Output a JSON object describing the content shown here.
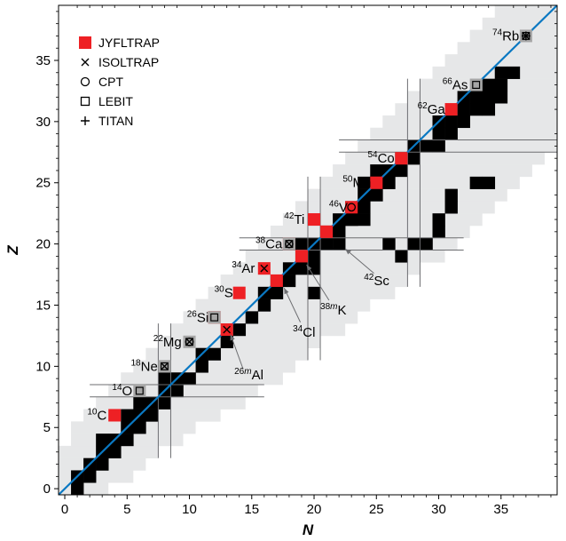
{
  "chart_data": {
    "type": "scatter",
    "title": "",
    "xlabel": "N",
    "ylabel": "Z",
    "xlim": [
      -0.5,
      39.5
    ],
    "ylim": [
      -0.5,
      39.5
    ],
    "x_ticks": [
      0,
      5,
      10,
      15,
      20,
      25,
      30,
      35
    ],
    "y_ticks": [
      0,
      5,
      10,
      15,
      20,
      25,
      30,
      35
    ],
    "colors": {
      "jyfltrap": "#ee2024",
      "lebit": "#a6a6a6",
      "stable": "#000000",
      "known": "#e6e7e8",
      "nz_line": "#0a78c2",
      "guide": "#6d6e71"
    },
    "legend": {
      "placement": "top-left",
      "entries": [
        {
          "label": "JYFLTRAP",
          "marker": "filled-square"
        },
        {
          "label": "ISOLTRAP",
          "marker": "cross"
        },
        {
          "label": "CPT",
          "marker": "circle"
        },
        {
          "label": "LEBIT",
          "marker": "open-square"
        },
        {
          "label": "TITAN",
          "marker": "plus"
        }
      ]
    },
    "nz_line": {
      "from": [
        -1,
        -1
      ],
      "to": [
        39.5,
        39.5
      ]
    },
    "shell_lines": {
      "magic": [
        8,
        20,
        28
      ],
      "half_width": 0.5
    },
    "stable_range": [
      [
        1,
        1
      ],
      [
        1,
        2
      ],
      [
        2,
        3
      ],
      [
        3,
        4
      ],
      [
        3,
        5
      ],
      [
        5,
        6
      ],
      [
        5,
        7
      ],
      [
        6,
        8
      ],
      [
        8,
        9
      ],
      [
        8,
        10
      ],
      [
        11,
        11
      ],
      [
        11,
        12
      ],
      [
        13,
        13
      ],
      [
        14,
        14
      ],
      [
        15,
        15
      ],
      [
        16,
        16
      ],
      [
        16,
        17
      ],
      [
        17,
        18
      ],
      [
        18,
        19
      ],
      [
        19,
        20
      ],
      [
        19,
        21
      ],
      [
        21,
        22
      ],
      [
        22,
        23
      ],
      [
        23,
        24
      ],
      [
        24,
        25
      ],
      [
        24,
        26
      ],
      [
        25,
        27
      ],
      [
        27,
        28
      ],
      [
        28,
        30
      ],
      [
        30,
        31
      ],
      [
        30,
        32
      ],
      [
        32,
        34
      ],
      [
        32,
        35
      ],
      [
        34,
        35
      ],
      [
        35,
        36
      ]
    ],
    "stable_extra": [
      [
        23,
        22
      ],
      [
        24,
        22
      ],
      [
        20,
        18
      ],
      [
        20,
        16
      ],
      [
        22,
        20
      ],
      [
        26,
        20
      ],
      [
        27,
        19
      ],
      [
        28,
        20
      ],
      [
        29,
        20
      ],
      [
        30,
        21
      ],
      [
        30,
        22
      ],
      [
        31,
        23
      ],
      [
        31,
        24
      ],
      [
        33,
        25
      ],
      [
        34,
        25
      ]
    ],
    "known_range": [
      [
        0,
        3
      ],
      [
        0,
        5
      ],
      [
        0,
        6
      ],
      [
        0,
        7
      ],
      [
        1,
        9
      ],
      [
        1,
        10
      ],
      [
        2,
        12
      ],
      [
        3,
        14
      ],
      [
        4,
        15
      ],
      [
        5,
        17
      ],
      [
        6,
        18
      ],
      [
        7,
        19
      ],
      [
        8,
        20
      ],
      [
        9,
        22
      ],
      [
        10,
        23
      ],
      [
        11,
        24
      ],
      [
        12,
        26
      ],
      [
        13,
        27
      ],
      [
        14,
        28
      ],
      [
        15,
        30
      ],
      [
        16,
        31
      ],
      [
        17,
        32
      ],
      [
        18,
        33
      ],
      [
        19,
        34
      ],
      [
        20,
        35
      ],
      [
        21,
        36
      ],
      [
        22,
        37
      ],
      [
        23,
        38
      ],
      [
        24,
        39
      ],
      [
        25,
        39
      ],
      [
        26,
        39
      ],
      [
        27,
        39
      ],
      [
        28,
        39
      ],
      [
        29,
        39
      ],
      [
        30,
        39
      ],
      [
        31,
        39
      ],
      [
        32,
        39
      ],
      [
        33,
        39
      ],
      [
        34,
        39
      ],
      [
        35,
        39
      ],
      [
        36,
        39
      ],
      [
        37,
        39
      ],
      [
        38,
        39
      ],
      [
        39,
        39
      ]
    ],
    "points": [
      {
        "label": "C",
        "mass": "10",
        "n": 4,
        "z": 6,
        "techniques": [
          "jyfltrap"
        ],
        "label_dx": -2.2,
        "label_dy": 0
      },
      {
        "label": "O",
        "mass": "14",
        "n": 6,
        "z": 8,
        "techniques": [
          "lebit"
        ],
        "label_dx": -2.2,
        "label_dy": 0
      },
      {
        "label": "Ne",
        "mass": "18",
        "n": 8,
        "z": 10,
        "techniques": [
          "lebit",
          "isoltrap"
        ],
        "label_dx": -2.7,
        "label_dy": 0
      },
      {
        "label": "Mg",
        "mass": "22",
        "n": 10,
        "z": 12,
        "techniques": [
          "lebit",
          "isoltrap",
          "cpt"
        ],
        "label_dx": -2.9,
        "label_dy": 0
      },
      {
        "label": "Si",
        "mass": "26",
        "n": 12,
        "z": 14,
        "techniques": [
          "jyfltrap",
          "lebit"
        ],
        "label_dx": -2.2,
        "label_dy": 0
      },
      {
        "label": "Al",
        "mass": "26m",
        "n": 13,
        "z": 13,
        "techniques": [
          "jyfltrap",
          "isoltrap"
        ],
        "label_dx": 0,
        "label_dy": 0
      },
      {
        "label": "S",
        "mass": "30",
        "n": 14,
        "z": 16,
        "techniques": [
          "jyfltrap"
        ],
        "label_dx": -2.0,
        "label_dy": 0
      },
      {
        "label": "Ar",
        "mass": "34",
        "n": 16,
        "z": 18,
        "techniques": [
          "jyfltrap",
          "isoltrap"
        ],
        "label_dx": -2.6,
        "label_dy": 0
      },
      {
        "label": "Cl",
        "mass": "34",
        "n": 17,
        "z": 17,
        "techniques": [
          "jyfltrap"
        ],
        "label_dx": 0,
        "label_dy": 0
      },
      {
        "label": "Ca",
        "mass": "38",
        "n": 18,
        "z": 20,
        "techniques": [
          "jyfltrap",
          "lebit",
          "isoltrap",
          "cpt"
        ],
        "label_dx": -2.7,
        "label_dy": 0
      },
      {
        "label": "K",
        "mass": "38m",
        "n": 19,
        "z": 19,
        "techniques": [
          "jyfltrap"
        ],
        "label_dx": 0,
        "label_dy": 0
      },
      {
        "label": "Ti",
        "mass": "42",
        "n": 20,
        "z": 22,
        "techniques": [
          "jyfltrap"
        ],
        "label_dx": -2.4,
        "label_dy": 0
      },
      {
        "label": "Sc",
        "mass": "42",
        "n": 21,
        "z": 21,
        "techniques": [
          "jyfltrap"
        ],
        "label_dx": 0,
        "label_dy": 0
      },
      {
        "label": "V",
        "mass": "46",
        "n": 23,
        "z": 23,
        "techniques": [
          "jyfltrap",
          "cpt"
        ],
        "label_dx": -1.8,
        "label_dy": 0
      },
      {
        "label": "Mn",
        "mass": "50",
        "n": 25,
        "z": 25,
        "techniques": [
          "jyfltrap"
        ],
        "label_dx": -2.7,
        "label_dy": 0
      },
      {
        "label": "Co",
        "mass": "54",
        "n": 27,
        "z": 27,
        "techniques": [
          "jyfltrap"
        ],
        "label_dx": -2.7,
        "label_dy": 0
      },
      {
        "label": "Ga",
        "mass": "62",
        "n": 31,
        "z": 31,
        "techniques": [
          "jyfltrap"
        ],
        "label_dx": -2.7,
        "label_dy": 0
      },
      {
        "label": "As",
        "mass": "66",
        "n": 33,
        "z": 33,
        "techniques": [
          "lebit"
        ],
        "label_dx": -2.7,
        "label_dy": 0
      },
      {
        "label": "Rb",
        "mass": "74",
        "n": 37,
        "z": 37,
        "techniques": [
          "lebit",
          "isoltrap",
          "titan"
        ],
        "label_dx": -2.7,
        "label_dy": 0
      }
    ],
    "callouts": [
      {
        "label": "Al",
        "mass": "26m",
        "from": [
          14.3,
          9.8
        ],
        "to": [
          13.3,
          12.6
        ],
        "text_at": [
          13.6,
          9.3
        ]
      },
      {
        "label": "Cl",
        "mass": "34",
        "from": [
          18.9,
          13.6
        ],
        "to": [
          17.6,
          16.4
        ],
        "text_at": [
          18.3,
          12.8
        ]
      },
      {
        "label": "K",
        "mass": "38m",
        "from": [
          21.2,
          15.4
        ],
        "to": [
          19.4,
          18.3
        ],
        "text_at": [
          20.5,
          14.6
        ]
      },
      {
        "label": "Sc",
        "mass": "42",
        "from": [
          24.8,
          17.6
        ],
        "to": [
          22.5,
          19.6
        ],
        "text_at": [
          24.0,
          17.0
        ]
      }
    ]
  }
}
